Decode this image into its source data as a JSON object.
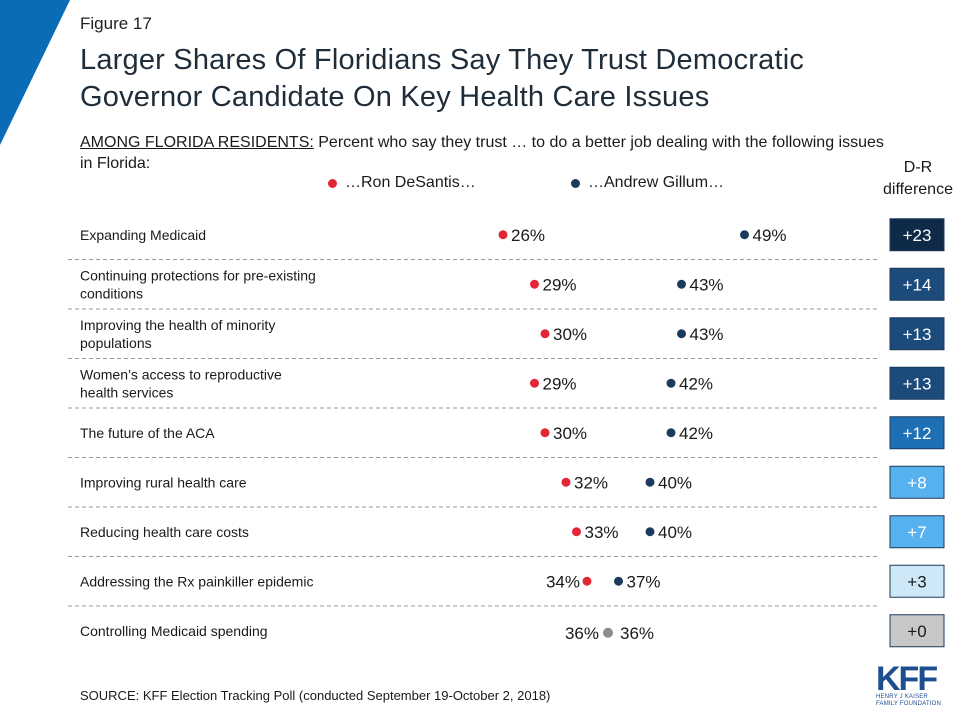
{
  "figure_label": "Figure 17",
  "title": "Larger Shares Of Floridians Say They Trust Democratic Governor Candidate On Key Health Care Issues",
  "subtitle_lead": "AMONG FLORIDA RESIDENTS:",
  "subtitle_rest": " Percent who say they trust … to do a better job dealing with the following issues in Florida:",
  "legend": {
    "republican": "…Ron DeSantis…",
    "democrat": "…Andrew Gillum…"
  },
  "dr_header": "D-R difference",
  "source": "SOURCE: KFF Election Tracking Poll (conducted September 19-October 2, 2018)",
  "logo": {
    "text": "KFF",
    "subtext": "HENRY J KAISER FAMILY FOUNDATION"
  },
  "colors": {
    "republican": "#e32636",
    "democrat": "#1b3a5c",
    "tie": "#8c8c8c",
    "accent": "#0a6bb6"
  },
  "chart_data": {
    "type": "scatter",
    "subtype": "dot-plot",
    "series": [
      {
        "name": "…Ron DeSantis…",
        "values": [
          26,
          29,
          30,
          29,
          30,
          32,
          33,
          34,
          36
        ]
      },
      {
        "name": "…Andrew Gillum…",
        "values": [
          49,
          43,
          43,
          42,
          42,
          40,
          40,
          37,
          36
        ]
      }
    ],
    "categories": [
      "Expanding Medicaid",
      "Continuing protections for pre-existing conditions",
      "Improving the health of minority populations",
      "Women’s access to reproductive health services",
      "The future of the ACA",
      "Improving rural health care",
      "Reducing health care costs",
      "Addressing the Rx painkiller epidemic",
      "Controlling Medicaid spending"
    ],
    "category_lines": [
      [
        "Expanding Medicaid"
      ],
      [
        "Continuing protections for pre-existing",
        "conditions"
      ],
      [
        "Improving the health of minority",
        "populations"
      ],
      [
        "Women’s access to reproductive",
        "health services"
      ],
      [
        "The future of the ACA"
      ],
      [
        "Improving rural health care"
      ],
      [
        "Reducing health care costs"
      ],
      [
        "Addressing the Rx painkiller epidemic"
      ],
      [
        "Controlling Medicaid spending"
      ]
    ],
    "differences": [
      "+23",
      "+14",
      "+13",
      "+13",
      "+12",
      "+8",
      "+7",
      "+3",
      "+0"
    ],
    "difference_values": [
      23,
      14,
      13,
      13,
      12,
      8,
      7,
      3,
      0
    ],
    "unit": "%"
  }
}
